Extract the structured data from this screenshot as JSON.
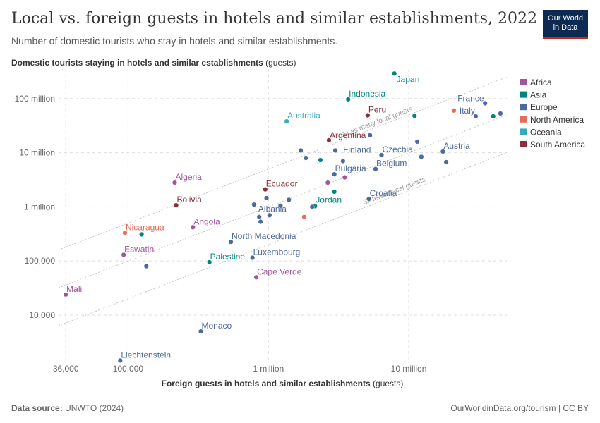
{
  "header": {
    "title": "Local vs. foreign guests in hotels and similar establishments, 2022",
    "subtitle": "Number of domestic tourists who stay in hotels and similar establishments.",
    "logo_line1": "Our World",
    "logo_line2": "in Data"
  },
  "footer": {
    "source_label": "Data source:",
    "source_value": "UNWTO (2024)",
    "credit": "OurWorldinData.org/tourism | CC BY"
  },
  "chart_data": {
    "type": "scatter",
    "title": "Local vs. foreign guests in hotels and similar establishments, 2022",
    "xlabel_bold": "Foreign guests in hotels and similar establishments",
    "xlabel_unit": "(guests)",
    "ylabel_bold": "Domestic tourists staying in hotels and similar establishments",
    "ylabel_unit": "(guests)",
    "x_scale": "log",
    "y_scale": "log",
    "xlim": [
      32000,
      50000000
    ],
    "ylim": [
      1300,
      350000000
    ],
    "x_ticks": [
      {
        "v": 36000,
        "label": "36,000"
      },
      {
        "v": 100000,
        "label": "100,000"
      },
      {
        "v": 1000000,
        "label": "1 million"
      },
      {
        "v": 10000000,
        "label": "10 million"
      }
    ],
    "y_ticks": [
      {
        "v": 10000,
        "label": "10,000"
      },
      {
        "v": 100000,
        "label": "100,000"
      },
      {
        "v": 1000000,
        "label": "1 million"
      },
      {
        "v": 10000000,
        "label": "10 million"
      },
      {
        "v": 100000000,
        "label": "100 million"
      }
    ],
    "grid": true,
    "legend_position": "right",
    "colors": {
      "Africa": "#a2559c",
      "Asia": "#00847e",
      "Europe": "#4c6a9c",
      "North America": "#e56e5a",
      "Oceania": "#38aaba",
      "South America": "#883039"
    },
    "legend": [
      "Africa",
      "Asia",
      "Europe",
      "North America",
      "Oceania",
      "South America"
    ],
    "reference_lines": [
      {
        "ratio": 5,
        "label": "5x as many local guests"
      },
      {
        "ratio": 1,
        "label": ""
      },
      {
        "ratio": 0.2,
        "label": "5x fewer local guests"
      }
    ],
    "points": [
      {
        "name": "Japan",
        "region": "Asia",
        "x": 7900000,
        "y": 290000000,
        "label": true
      },
      {
        "name": "Indonesia",
        "region": "Asia",
        "x": 3700000,
        "y": 97000000,
        "label": true
      },
      {
        "name": "France",
        "region": "Europe",
        "x": 35000000,
        "y": 82000000,
        "label": true
      },
      {
        "name": "Italy",
        "region": "Europe",
        "x": 30000000,
        "y": 47000000,
        "label": true
      },
      {
        "name": "Peru",
        "region": "South America",
        "x": 5100000,
        "y": 49000000,
        "label": true
      },
      {
        "name": "Australia",
        "region": "Oceania",
        "x": 1350000,
        "y": 38000000,
        "label": true
      },
      {
        "name": "Argentina",
        "region": "South America",
        "x": 2700000,
        "y": 17000000,
        "label": true
      },
      {
        "name": "Finland",
        "region": "Europe",
        "x": 3000000,
        "y": 11000000,
        "label": true
      },
      {
        "name": "Czechia",
        "region": "Europe",
        "x": 6400000,
        "y": 9000000,
        "label": true
      },
      {
        "name": "Austria",
        "region": "Europe",
        "x": 17500000,
        "y": 10500000,
        "label": true
      },
      {
        "name": "Belgium",
        "region": "Europe",
        "x": 5800000,
        "y": 5000000,
        "label": true
      },
      {
        "name": "Bulgaria",
        "region": "Europe",
        "x": 2950000,
        "y": 4000000,
        "label": true
      },
      {
        "name": "Algeria",
        "region": "Africa",
        "x": 215000,
        "y": 2800000,
        "label": true
      },
      {
        "name": "Ecuador",
        "region": "South America",
        "x": 950000,
        "y": 2100000,
        "label": true
      },
      {
        "name": "Bolivia",
        "region": "South America",
        "x": 220000,
        "y": 1070000,
        "label": true
      },
      {
        "name": "Croatia",
        "region": "Europe",
        "x": 5200000,
        "y": 1400000,
        "label": true
      },
      {
        "name": "Jordan",
        "region": "Asia",
        "x": 2150000,
        "y": 1030000,
        "label": true
      },
      {
        "name": "Albania",
        "region": "Europe",
        "x": 1020000,
        "y": 700000,
        "label": true
      },
      {
        "name": "Angola",
        "region": "Africa",
        "x": 290000,
        "y": 420000,
        "label": true
      },
      {
        "name": "Nicaragua",
        "region": "North America",
        "x": 95000,
        "y": 330000,
        "label": true
      },
      {
        "name": "North Macedonia",
        "region": "Europe",
        "x": 540000,
        "y": 225000,
        "label": true
      },
      {
        "name": "Eswatini",
        "region": "Africa",
        "x": 93000,
        "y": 130000,
        "label": true
      },
      {
        "name": "Luxembourg",
        "region": "Europe",
        "x": 770000,
        "y": 115000,
        "label": true
      },
      {
        "name": "Palestine",
        "region": "Asia",
        "x": 380000,
        "y": 95000,
        "label": true
      },
      {
        "name": "Cape Verde",
        "region": "Africa",
        "x": 820000,
        "y": 50000,
        "label": true
      },
      {
        "name": "Mali",
        "region": "Africa",
        "x": 36000,
        "y": 24000,
        "label": true
      },
      {
        "name": "Monaco",
        "region": "Europe",
        "x": 330000,
        "y": 5000,
        "label": true
      },
      {
        "name": "Liechtenstein",
        "region": "Europe",
        "x": 88000,
        "y": 1450,
        "label": true
      },
      {
        "name": "",
        "region": "Asia",
        "x": 11000000,
        "y": 48000000,
        "label": false
      },
      {
        "name": "",
        "region": "North America",
        "x": 21000000,
        "y": 60000000,
        "label": false
      },
      {
        "name": "",
        "region": "Asia",
        "x": 40000000,
        "y": 47000000,
        "label": false
      },
      {
        "name": "",
        "region": "Europe",
        "x": 45000000,
        "y": 53000000,
        "label": false
      },
      {
        "name": "",
        "region": "Europe",
        "x": 5300000,
        "y": 21000000,
        "label": false
      },
      {
        "name": "",
        "region": "Europe",
        "x": 11500000,
        "y": 16000000,
        "label": false
      },
      {
        "name": "",
        "region": "Europe",
        "x": 12300000,
        "y": 8400000,
        "label": false
      },
      {
        "name": "",
        "region": "Europe",
        "x": 18500000,
        "y": 6700000,
        "label": false
      },
      {
        "name": "",
        "region": "Europe",
        "x": 1700000,
        "y": 11000000,
        "label": false
      },
      {
        "name": "",
        "region": "Europe",
        "x": 1850000,
        "y": 8000000,
        "label": false
      },
      {
        "name": "",
        "region": "Asia",
        "x": 2350000,
        "y": 7300000,
        "label": false
      },
      {
        "name": "",
        "region": "Europe",
        "x": 3400000,
        "y": 7000000,
        "label": false
      },
      {
        "name": "",
        "region": "Africa",
        "x": 3500000,
        "y": 3500000,
        "label": false
      },
      {
        "name": "",
        "region": "Africa",
        "x": 2650000,
        "y": 2800000,
        "label": false
      },
      {
        "name": "",
        "region": "Asia",
        "x": 2950000,
        "y": 1900000,
        "label": false
      },
      {
        "name": "",
        "region": "Europe",
        "x": 970000,
        "y": 1450000,
        "label": false
      },
      {
        "name": "",
        "region": "Europe",
        "x": 1400000,
        "y": 1350000,
        "label": false
      },
      {
        "name": "",
        "region": "Europe",
        "x": 790000,
        "y": 1100000,
        "label": false
      },
      {
        "name": "",
        "region": "Europe",
        "x": 1220000,
        "y": 1050000,
        "label": false
      },
      {
        "name": "",
        "region": "Europe",
        "x": 2050000,
        "y": 1000000,
        "label": false
      },
      {
        "name": "",
        "region": "Europe",
        "x": 860000,
        "y": 650000,
        "label": false
      },
      {
        "name": "",
        "region": "Europe",
        "x": 880000,
        "y": 530000,
        "label": false
      },
      {
        "name": "",
        "region": "North America",
        "x": 1800000,
        "y": 650000,
        "label": false
      },
      {
        "name": "",
        "region": "Asia",
        "x": 125000,
        "y": 310000,
        "label": false
      },
      {
        "name": "",
        "region": "Europe",
        "x": 135000,
        "y": 80000,
        "label": false
      }
    ]
  }
}
